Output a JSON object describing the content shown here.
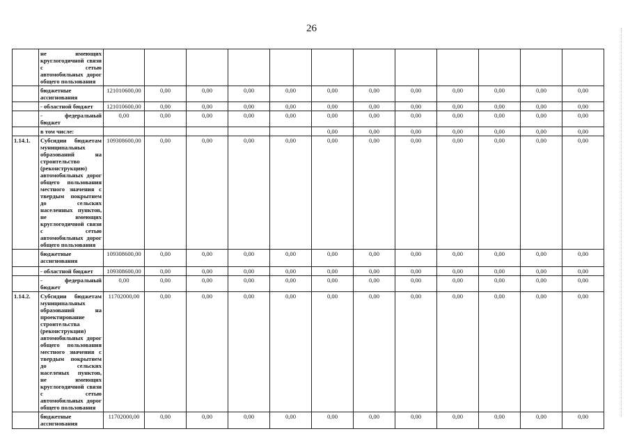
{
  "page_number": "26",
  "rows": [
    {
      "code": "",
      "desc": "не имеющих круглогодичной связи с сетью автомобильных дорог общего пользования",
      "values": [
        "",
        "",
        "",
        "",
        "",
        "",
        "",
        "",
        "",
        "",
        "",
        ""
      ],
      "h": 53
    },
    {
      "code": "",
      "desc": "бюджетные ассигнования",
      "values": [
        "121010600,00",
        "0,00",
        "0,00",
        "0,00",
        "0,00",
        "0,00",
        "0,00",
        "0,00",
        "0,00",
        "0,00",
        "0,00",
        "0,00"
      ],
      "h": 23
    },
    {
      "code": "",
      "desc": "- областной бюджет",
      "values": [
        "121010600,00",
        "0,00",
        "0,00",
        "0,00",
        "0,00",
        "0,00",
        "0,00",
        "0,00",
        "0,00",
        "0,00",
        "0,00",
        "0,00"
      ],
      "h": 13
    },
    {
      "code": "",
      "desc": "- федеральный бюджет",
      "values": [
        "0,00",
        "0,00",
        "0,00",
        "0,00",
        "0,00",
        "0,00",
        "0,00",
        "0,00",
        "0,00",
        "0,00",
        "0,00",
        "0,00"
      ],
      "h": 13
    },
    {
      "code": "",
      "desc": "в том числе:",
      "values": [
        "",
        "",
        "",
        "",
        "",
        "0,00",
        "0,00",
        "0,00",
        "0,00",
        "0,00",
        "0,00",
        "0,00"
      ],
      "h": 12
    },
    {
      "code": "1.14.1.",
      "desc": "Субсидии бюджетам муниципальных образований на строительство (реконструкцию) автомобильных дорог общего пользования местного значения с твердым покрытием до сельских населенных пунктов, не имеющих круглогодичной связи с сетью автомобильных дорог общего пользования",
      "values": [
        "109308600,00",
        "0,00",
        "0,00",
        "0,00",
        "0,00",
        "0,00",
        "0,00",
        "0,00",
        "0,00",
        "0,00",
        "0,00",
        "0,00"
      ],
      "h": 162
    },
    {
      "code": "",
      "desc": "бюджетные ассигнования",
      "values": [
        "109308600,00",
        "0,00",
        "0,00",
        "0,00",
        "0,00",
        "0,00",
        "0,00",
        "0,00",
        "0,00",
        "0,00",
        "0,00",
        "0,00"
      ],
      "h": 25
    },
    {
      "code": "",
      "desc": "- областной бюджет",
      "values": [
        "109308600,00",
        "0,00",
        "0,00",
        "0,00",
        "0,00",
        "0,00",
        "0,00",
        "0,00",
        "0,00",
        "0,00",
        "0,00",
        "0,00"
      ],
      "h": 13
    },
    {
      "code": "",
      "desc": "- федеральный бюджет",
      "values": [
        "0,00",
        "0,00",
        "0,00",
        "0,00",
        "0,00",
        "0,00",
        "0,00",
        "0,00",
        "0,00",
        "0,00",
        "0,00",
        "0,00"
      ],
      "h": 13
    },
    {
      "code": "1.14.2.",
      "desc": "Субсидии бюджетам муниципальных образований на проектирование строительства (реконструкции) автомобильных дорог общего пользования местного значения с твердым покрытием до сельских населеных пунктов, не имеющих круглогодичной связи с сетью автомобильных дорог общего пользования",
      "values": [
        "11702000,00",
        "0,00",
        "0,00",
        "0,00",
        "0,00",
        "0,00",
        "0,00",
        "0,00",
        "0,00",
        "0,00",
        "0,00",
        "0,00"
      ],
      "h": 173
    },
    {
      "code": "",
      "desc": "бюджетные ассигнования",
      "values": [
        "11702000,00",
        "0,00",
        "0,00",
        "0,00",
        "0,00",
        "0,00",
        "0,00",
        "0,00",
        "0,00",
        "0,00",
        "0,00",
        "0,00"
      ],
      "h": 24
    }
  ]
}
